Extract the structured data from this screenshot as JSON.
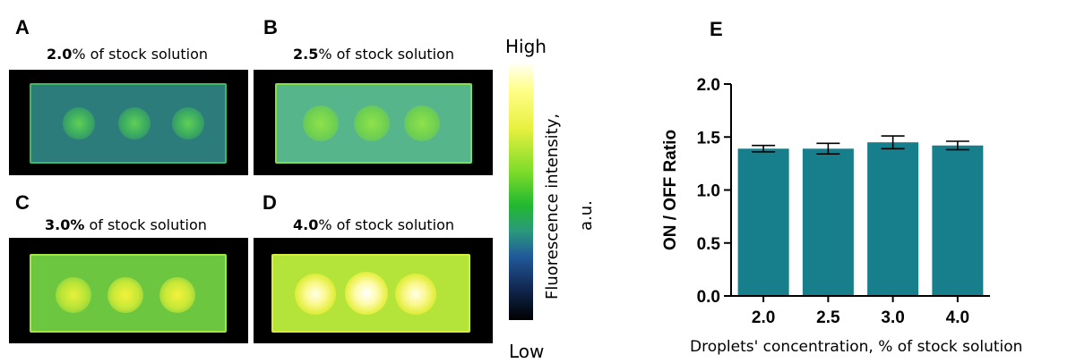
{
  "panels": [
    {
      "letter": "A",
      "caption_bold": "2.0",
      "caption_rest": "% of stock solution",
      "level": 0.2
    },
    {
      "letter": "B",
      "caption_bold": "2.5",
      "caption_rest": "% of stock solution",
      "level": 0.35
    },
    {
      "letter": "C",
      "caption_bold": "3.0%",
      "caption_rest": " of stock solution",
      "level": 0.5
    },
    {
      "letter": "D",
      "caption_bold": "4.0",
      "caption_rest": "% of stock solution",
      "level": 0.85
    }
  ],
  "colorbar": {
    "high_label": "High",
    "low_label": "Low",
    "title": "Fluorescence intensity,",
    "unit": "a.u."
  },
  "chart_data": {
    "panel_letter": "E",
    "type": "bar",
    "categories": [
      "2.0",
      "2.5",
      "3.0",
      "4.0"
    ],
    "values": [
      1.39,
      1.39,
      1.45,
      1.42
    ],
    "errors": [
      0.03,
      0.05,
      0.06,
      0.04
    ],
    "ylabel": "ON / OFF Ratio",
    "xlabel": "Droplets' concentration, % of stock solution",
    "ylim": [
      0,
      2.0
    ],
    "yticks": [
      "0.0",
      "0.5",
      "1.0",
      "1.5",
      "2.0"
    ],
    "bar_color": "#177e8c"
  }
}
